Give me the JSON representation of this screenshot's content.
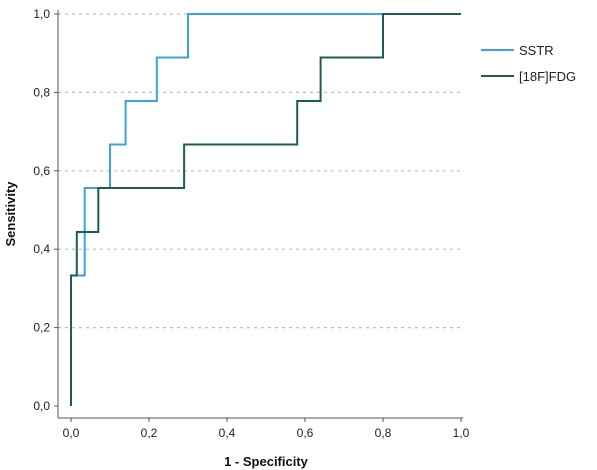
{
  "chart_data": {
    "type": "line",
    "title": "",
    "xlabel": "1 - Specificity",
    "ylabel": "Sensitivity",
    "xlim": [
      0,
      1
    ],
    "ylim": [
      0,
      1
    ],
    "x_ticks": [
      "0,0",
      "0,2",
      "0,4",
      "0,6",
      "0,8",
      "1,0"
    ],
    "y_ticks": [
      "0,0",
      "0,2",
      "0,4",
      "0,6",
      "0,8",
      "1,0"
    ],
    "grid": "horizontal-dotted",
    "legend_position": "right",
    "series": [
      {
        "name": "SSTR",
        "color": "#3ba3dc",
        "points": [
          [
            0,
            0
          ],
          [
            0,
            0.333
          ],
          [
            0.035,
            0.333
          ],
          [
            0.035,
            0.556
          ],
          [
            0.1,
            0.556
          ],
          [
            0.1,
            0.667
          ],
          [
            0.14,
            0.667
          ],
          [
            0.14,
            0.778
          ],
          [
            0.22,
            0.778
          ],
          [
            0.22,
            0.889
          ],
          [
            0.3,
            0.889
          ],
          [
            0.3,
            1.0
          ],
          [
            1.0,
            1.0
          ]
        ]
      },
      {
        "name": "[18F]FDG",
        "color": "#1e5d57",
        "points": [
          [
            0,
            0
          ],
          [
            0,
            0.333
          ],
          [
            0.015,
            0.333
          ],
          [
            0.015,
            0.444
          ],
          [
            0.07,
            0.444
          ],
          [
            0.07,
            0.556
          ],
          [
            0.29,
            0.556
          ],
          [
            0.29,
            0.667
          ],
          [
            0.58,
            0.667
          ],
          [
            0.58,
            0.778
          ],
          [
            0.64,
            0.778
          ],
          [
            0.64,
            0.889
          ],
          [
            0.8,
            0.889
          ],
          [
            0.8,
            1.0
          ],
          [
            1.0,
            1.0
          ]
        ]
      }
    ]
  }
}
